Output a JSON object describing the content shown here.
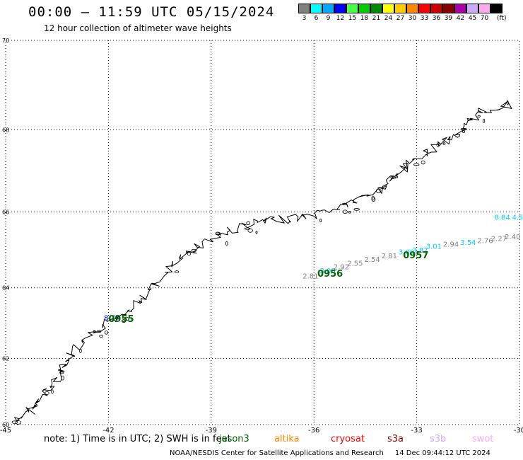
{
  "header": {
    "title": "00:00 – 11:59 UTC 05/15/2024",
    "subtitle": "12 hour collection of altimeter wave heights"
  },
  "colorbar": {
    "unit": "(ft)",
    "bins": [
      {
        "label": "3",
        "color": "#808080"
      },
      {
        "label": "6",
        "color": "#00ffff"
      },
      {
        "label": "9",
        "color": "#00aaff"
      },
      {
        "label": "12",
        "color": "#0000ff"
      },
      {
        "label": "15",
        "color": "#44ff44"
      },
      {
        "label": "18",
        "color": "#00cc00"
      },
      {
        "label": "21",
        "color": "#008800"
      },
      {
        "label": "24",
        "color": "#ffff00"
      },
      {
        "label": "27",
        "color": "#ffcc00"
      },
      {
        "label": "30",
        "color": "#ff8800"
      },
      {
        "label": "33",
        "color": "#ff0000"
      },
      {
        "label": "36",
        "color": "#cc0000"
      },
      {
        "label": "39",
        "color": "#880000"
      },
      {
        "label": "42",
        "color": "#aa00aa"
      },
      {
        "label": "45",
        "color": "#ccaaff"
      },
      {
        "label": "70",
        "color": "#ffaaee"
      },
      {
        "label": "",
        "color": "#000000"
      }
    ]
  },
  "map": {
    "lat_labels": [
      "70",
      "68",
      "66",
      "64",
      "62",
      "60"
    ],
    "lon_labels": [
      "-45",
      "-42",
      "-39",
      "-36",
      "-33",
      "-30"
    ],
    "lon_range": [
      -45,
      -30
    ],
    "lat_range": [
      60,
      70
    ]
  },
  "tracks": [
    {
      "pass": "0955",
      "color": "#006400",
      "points": [
        {
          "lon": -41.9,
          "lat": 63.1,
          "label": "8.77",
          "color": "#0000ff"
        }
      ]
    },
    {
      "pass": "0956",
      "color": "#006400",
      "points": [
        {
          "lon": -36.1,
          "lat": 64.25,
          "label": "2.81",
          "color": "#808080"
        },
        {
          "lon": -35.6,
          "lat": 64.4,
          "label": "3.00",
          "color": "#00ccff"
        },
        {
          "lon": -35.2,
          "lat": 64.5,
          "label": "2.92",
          "color": "#808080"
        },
        {
          "lon": -34.8,
          "lat": 64.6,
          "label": "2.55",
          "color": "#808080"
        },
        {
          "lon": -34.3,
          "lat": 64.7,
          "label": "2.54",
          "color": "#808080"
        },
        {
          "lon": -33.8,
          "lat": 64.8,
          "label": "2.81",
          "color": "#808080"
        },
        {
          "lon": -33.3,
          "lat": 64.9,
          "label": "3.00",
          "color": "#00ccff"
        },
        {
          "lon": -32.9,
          "lat": 64.95,
          "label": "3.87",
          "color": "#00ccff"
        },
        {
          "lon": -32.5,
          "lat": 65.05,
          "label": "3.01",
          "color": "#00ccff"
        },
        {
          "lon": -32.0,
          "lat": 65.1,
          "label": "2.94",
          "color": "#808080"
        },
        {
          "lon": -31.5,
          "lat": 65.15,
          "label": "3.54",
          "color": "#00ccff"
        },
        {
          "lon": -31.0,
          "lat": 65.2,
          "label": "2.76",
          "color": "#808080"
        },
        {
          "lon": -30.6,
          "lat": 65.25,
          "label": "2.27",
          "color": "#808080"
        },
        {
          "lon": -30.2,
          "lat": 65.3,
          "label": "2.40",
          "color": "#808080"
        },
        {
          "lon": -29.8,
          "lat": 65.35,
          "label": "3.",
          "color": "#00ccff"
        }
      ]
    },
    {
      "pass": "0957",
      "color": "#006400",
      "points": [
        {
          "lon": -30.5,
          "lat": 65.8,
          "label": "8.84",
          "color": "#00ccff"
        },
        {
          "lon": -30.05,
          "lat": 65.8,
          "label": "4.5",
          "color": "#00ccff"
        }
      ]
    }
  ],
  "pass_labels": [
    {
      "text": "0955",
      "lon": -42.0,
      "lat": 63.05
    },
    {
      "text": "0956",
      "lon": -35.9,
      "lat": 64.3
    },
    {
      "text": "0957",
      "lon": -33.4,
      "lat": 64.8
    }
  ],
  "note": {
    "text": "note:  1) Time is in UTC; 2) SWH is in feet",
    "satellites": [
      {
        "name": "jason3",
        "color": "#006400"
      },
      {
        "name": "altika",
        "color": "#ff8800"
      },
      {
        "name": "cryosat",
        "color": "#ff0000"
      },
      {
        "name": "s3a",
        "color": "#880000"
      },
      {
        "name": "s3b",
        "color": "#ccaaff"
      },
      {
        "name": "swot",
        "color": "#ffaaee"
      }
    ]
  },
  "footer": {
    "org": "NOAA/NESDIS Center for Satellite Applications and Research",
    "generated": "14 Dec 09:44:12 UTC 2024"
  }
}
